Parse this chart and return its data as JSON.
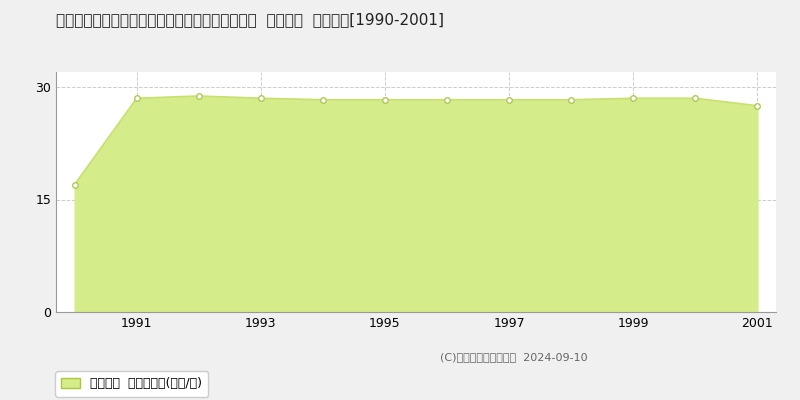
{
  "title": "宮城県仙台市太白区中田町字鎌ケ淵１２４番９外  地価公示  地価推移[1990-2001]",
  "years": [
    1990,
    1991,
    1992,
    1993,
    1994,
    1995,
    1996,
    1997,
    1998,
    1999,
    2000,
    2001
  ],
  "values": [
    17.0,
    28.5,
    28.8,
    28.5,
    28.3,
    28.3,
    28.3,
    28.3,
    28.3,
    28.5,
    28.5,
    27.5
  ],
  "line_color": "#c8e06e",
  "fill_color": "#d4ec8a",
  "fill_alpha": 1.0,
  "marker_color": "white",
  "marker_edge_color": "#b0c855",
  "yticks": [
    0,
    15,
    30
  ],
  "xtick_years": [
    1991,
    1993,
    1995,
    1997,
    1999,
    2001
  ],
  "ylim": [
    0,
    32
  ],
  "grid_color": "#cccccc",
  "background_color": "#f0f0f0",
  "plot_bg_color": "#ffffff",
  "legend_label": "地価公示  平均坪単価(万円/坪)",
  "copyright_text": "(C)土地価格ドットコム  2024-09-10",
  "title_fontsize": 11,
  "axis_fontsize": 9,
  "legend_fontsize": 9,
  "copyright_fontsize": 8
}
